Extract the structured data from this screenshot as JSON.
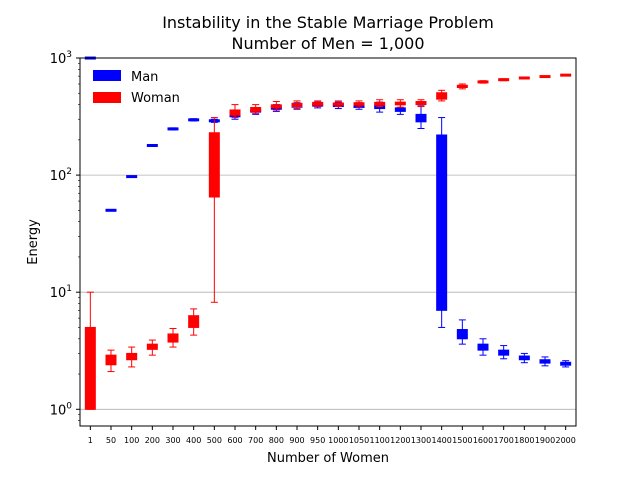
{
  "chart_data": {
    "type": "boxplot",
    "title": "Instability in the Stable Marriage Problem",
    "subtitle": "Number of Men = 1,000",
    "xlabel": "Number of Women",
    "ylabel": "Energy",
    "yscale": "log",
    "ylim": [
      0.72,
      1000
    ],
    "y_ticks": [
      {
        "value": 1,
        "base": "10",
        "exp": "0"
      },
      {
        "value": 10,
        "base": "10",
        "exp": "1"
      },
      {
        "value": 100,
        "base": "10",
        "exp": "2"
      },
      {
        "value": 1000,
        "base": "10",
        "exp": "3"
      }
    ],
    "grid": "horizontal",
    "legend": {
      "position": "top-left",
      "entries": [
        "Man",
        "Woman"
      ]
    },
    "colors": {
      "Man": "#0000ff",
      "Woman": "#ff0000",
      "grid": "#b0b0b0"
    },
    "categories": [
      "1",
      "50",
      "100",
      "200",
      "300",
      "400",
      "500",
      "600",
      "700",
      "800",
      "900",
      "950",
      "1000",
      "1050",
      "1100",
      "1200",
      "1300",
      "1400",
      "1500",
      "1600",
      "1700",
      "1800",
      "1900",
      "2000"
    ],
    "series": [
      {
        "name": "Man",
        "boxes": [
          {
            "x": "1",
            "min": 999,
            "q1": 999,
            "median": 999,
            "q3": 999,
            "max": 999
          },
          {
            "x": "50",
            "min": 49.5,
            "q1": 49.8,
            "median": 50,
            "q3": 50.3,
            "max": 50.6
          },
          {
            "x": "100",
            "min": 96,
            "q1": 96.8,
            "median": 97,
            "q3": 97.4,
            "max": 98
          },
          {
            "x": "200",
            "min": 176,
            "q1": 178,
            "median": 179,
            "q3": 180,
            "max": 182
          },
          {
            "x": "300",
            "min": 243,
            "q1": 246,
            "median": 248,
            "q3": 250,
            "max": 253
          },
          {
            "x": "400",
            "min": 290,
            "q1": 294,
            "median": 296,
            "q3": 299,
            "max": 303
          },
          {
            "x": "500",
            "min": 282,
            "q1": 287,
            "median": 290,
            "q3": 295,
            "max": 300
          },
          {
            "x": "600",
            "min": 300,
            "q1": 315,
            "median": 322,
            "q3": 333,
            "max": 350
          },
          {
            "x": "700",
            "min": 330,
            "q1": 345,
            "median": 352,
            "q3": 360,
            "max": 372
          },
          {
            "x": "800",
            "min": 350,
            "q1": 365,
            "median": 375,
            "q3": 385,
            "max": 400
          },
          {
            "x": "900",
            "min": 365,
            "q1": 380,
            "median": 390,
            "q3": 400,
            "max": 415
          },
          {
            "x": "950",
            "min": 375,
            "q1": 388,
            "median": 395,
            "q3": 405,
            "max": 420
          },
          {
            "x": "1000",
            "min": 370,
            "q1": 385,
            "median": 395,
            "q3": 405,
            "max": 420
          },
          {
            "x": "1050",
            "min": 365,
            "q1": 378,
            "median": 390,
            "q3": 400,
            "max": 415
          },
          {
            "x": "1100",
            "min": 345,
            "q1": 370,
            "median": 385,
            "q3": 395,
            "max": 420
          },
          {
            "x": "1200",
            "min": 330,
            "q1": 350,
            "median": 360,
            "q3": 375,
            "max": 400
          },
          {
            "x": "1300",
            "min": 250,
            "q1": 285,
            "median": 305,
            "q3": 330,
            "max": 390
          },
          {
            "x": "1400",
            "min": 5,
            "q1": 7,
            "median": 50,
            "q3": 220,
            "max": 310
          },
          {
            "x": "1500",
            "min": 3.6,
            "q1": 4.0,
            "median": 4.4,
            "q3": 4.8,
            "max": 5.8
          },
          {
            "x": "1600",
            "min": 2.9,
            "q1": 3.2,
            "median": 3.4,
            "q3": 3.6,
            "max": 4.0
          },
          {
            "x": "1700",
            "min": 2.7,
            "q1": 2.9,
            "median": 3.0,
            "q3": 3.2,
            "max": 3.5
          },
          {
            "x": "1800",
            "min": 2.5,
            "q1": 2.65,
            "median": 2.75,
            "q3": 2.85,
            "max": 3.0
          },
          {
            "x": "1900",
            "min": 2.35,
            "q1": 2.48,
            "median": 2.55,
            "q3": 2.65,
            "max": 2.8
          },
          {
            "x": "2000",
            "min": 2.3,
            "q1": 2.38,
            "median": 2.45,
            "q3": 2.52,
            "max": 2.6
          }
        ]
      },
      {
        "name": "Woman",
        "boxes": [
          {
            "x": "1",
            "min": 1,
            "q1": 1,
            "median": 2,
            "q3": 5,
            "max": 10
          },
          {
            "x": "50",
            "min": 2.1,
            "q1": 2.4,
            "median": 2.6,
            "q3": 2.9,
            "max": 3.2
          },
          {
            "x": "100",
            "min": 2.3,
            "q1": 2.65,
            "median": 2.8,
            "q3": 3.0,
            "max": 3.4
          },
          {
            "x": "200",
            "min": 2.9,
            "q1": 3.25,
            "median": 3.4,
            "q3": 3.6,
            "max": 3.9
          },
          {
            "x": "300",
            "min": 3.4,
            "q1": 3.75,
            "median": 4.0,
            "q3": 4.4,
            "max": 4.9
          },
          {
            "x": "400",
            "min": 4.3,
            "q1": 5.0,
            "median": 5.6,
            "q3": 6.3,
            "max": 7.2
          },
          {
            "x": "500",
            "min": 8.2,
            "q1": 65,
            "median": 110,
            "q3": 230,
            "max": 310
          },
          {
            "x": "600",
            "min": 310,
            "q1": 325,
            "median": 340,
            "q3": 360,
            "max": 400
          },
          {
            "x": "700",
            "min": 335,
            "q1": 350,
            "median": 362,
            "q3": 378,
            "max": 400
          },
          {
            "x": "800",
            "min": 360,
            "q1": 375,
            "median": 385,
            "q3": 398,
            "max": 425
          },
          {
            "x": "900",
            "min": 370,
            "q1": 385,
            "median": 395,
            "q3": 410,
            "max": 430
          },
          {
            "x": "950",
            "min": 385,
            "q1": 395,
            "median": 405,
            "q3": 418,
            "max": 430
          },
          {
            "x": "1000",
            "min": 385,
            "q1": 395,
            "median": 403,
            "q3": 413,
            "max": 430
          },
          {
            "x": "1050",
            "min": 380,
            "q1": 395,
            "median": 403,
            "q3": 415,
            "max": 430
          },
          {
            "x": "1100",
            "min": 385,
            "q1": 395,
            "median": 405,
            "q3": 418,
            "max": 440
          },
          {
            "x": "1200",
            "min": 380,
            "q1": 398,
            "median": 408,
            "q3": 420,
            "max": 440
          },
          {
            "x": "1300",
            "min": 385,
            "q1": 400,
            "median": 410,
            "q3": 425,
            "max": 440
          },
          {
            "x": "1400",
            "min": 430,
            "q1": 445,
            "median": 470,
            "q3": 505,
            "max": 530
          },
          {
            "x": "1500",
            "min": 545,
            "q1": 560,
            "median": 570,
            "q3": 585,
            "max": 600
          },
          {
            "x": "1600",
            "min": 610,
            "q1": 618,
            "median": 624,
            "q3": 632,
            "max": 640
          },
          {
            "x": "1700",
            "min": 640,
            "q1": 648,
            "median": 653,
            "q3": 658,
            "max": 665
          },
          {
            "x": "1800",
            "min": 665,
            "q1": 670,
            "median": 675,
            "q3": 680,
            "max": 685
          },
          {
            "x": "1900",
            "min": 685,
            "q1": 690,
            "median": 694,
            "q3": 698,
            "max": 702
          },
          {
            "x": "2000",
            "min": 705,
            "q1": 710,
            "median": 714,
            "q3": 718,
            "max": 722
          }
        ]
      }
    ]
  }
}
